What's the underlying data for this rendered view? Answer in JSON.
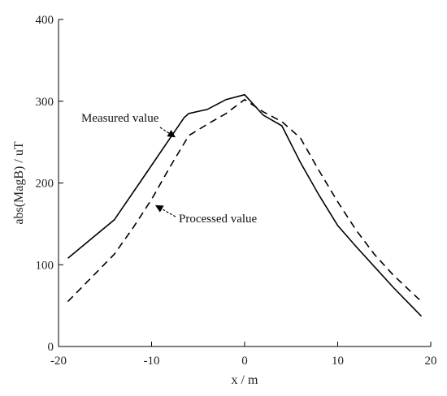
{
  "chart_data": {
    "type": "line",
    "title": "",
    "xlabel": "x / m",
    "ylabel": "abs(MagB) / uT",
    "xlim": [
      -20,
      20
    ],
    "ylim": [
      0,
      400
    ],
    "xticks": [
      -20,
      -10,
      0,
      10,
      20
    ],
    "yticks": [
      0,
      100,
      200,
      300,
      400
    ],
    "grid": false,
    "series": [
      {
        "name": "Measured value",
        "style": "solid",
        "color": "#000000",
        "x": [
          -19,
          -14,
          -11,
          -8,
          -6.5,
          -6,
          -4,
          -2,
          0,
          2,
          4,
          6,
          8,
          10,
          12,
          14,
          16,
          19
        ],
        "y": [
          108,
          155,
          205,
          255,
          280,
          285,
          290,
          302,
          308,
          283,
          270,
          225,
          185,
          148,
          122,
          97,
          72,
          37
        ]
      },
      {
        "name": "Processed value",
        "style": "dashed",
        "color": "#000000",
        "x": [
          -19,
          -14,
          -12,
          -10,
          -8,
          -6,
          -4,
          -2,
          0,
          2,
          4,
          6,
          8,
          10,
          12,
          14,
          16,
          19
        ],
        "y": [
          55,
          113,
          145,
          180,
          220,
          258,
          272,
          285,
          302,
          287,
          275,
          255,
          215,
          177,
          142,
          112,
          87,
          55
        ]
      }
    ],
    "annotations": [
      {
        "text": "Measured value",
        "arrow_to_series": "Measured value"
      },
      {
        "text": "Processed value",
        "arrow_to_series": "Processed value"
      }
    ]
  }
}
